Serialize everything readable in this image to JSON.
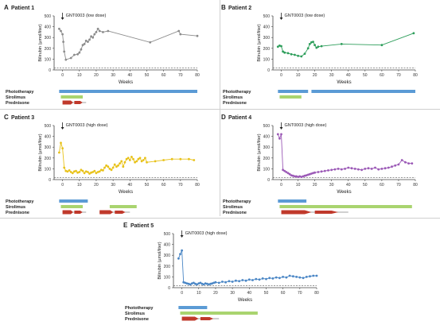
{
  "chart_data": [
    {
      "type": "line",
      "panel_label": "A",
      "title": "Patient 1",
      "annotation": "GNT0003 (low dose)",
      "xlabel": "Weeks",
      "ylabel": "Bilirubin (µmol/liter)",
      "xlim": [
        -5,
        80
      ],
      "ylim": [
        0,
        500
      ],
      "xticks": [
        0,
        10,
        20,
        30,
        40,
        50,
        60,
        70,
        80
      ],
      "yticks": [
        0,
        100,
        200,
        300,
        400,
        500
      ],
      "color": "#8c8c8c",
      "dashed_reference_y": 20,
      "x": [
        -2,
        -1,
        0,
        0.5,
        1,
        2,
        5,
        7,
        9,
        10,
        11,
        12,
        13,
        14,
        15,
        16,
        17,
        18,
        19,
        20,
        21,
        22,
        24,
        27,
        52,
        69,
        70,
        80
      ],
      "y": [
        380,
        360,
        330,
        260,
        170,
        95,
        110,
        140,
        145,
        160,
        190,
        230,
        240,
        270,
        260,
        280,
        310,
        300,
        330,
        350,
        380,
        360,
        350,
        360,
        255,
        360,
        330,
        315
      ],
      "treatments": [
        {
          "name": "Phototherapy",
          "segments": [
            [
              -2,
              80
            ]
          ],
          "color": "#5b9bd5"
        },
        {
          "name": "Sirolimus",
          "segments": [
            [
              -1,
              12
            ]
          ],
          "color": "#a9d46f"
        },
        {
          "name": "Prednisone",
          "segments": [
            [
              0,
              14
            ]
          ],
          "color": "#c0392b"
        }
      ]
    },
    {
      "type": "line",
      "panel_label": "B",
      "title": "Patient 2",
      "annotation": "GNT0003 (low dose)",
      "xlabel": "Weeks",
      "ylabel": "Bilirubin (µmol/liter)",
      "xlim": [
        -5,
        80
      ],
      "ylim": [
        0,
        500
      ],
      "xticks": [
        0,
        10,
        20,
        30,
        40,
        50,
        60,
        70,
        80
      ],
      "yticks": [
        0,
        100,
        200,
        300,
        400,
        500
      ],
      "color": "#2e9e5b",
      "dashed_reference_y": 20,
      "x": [
        -2,
        -1,
        0,
        1,
        2,
        4,
        6,
        8,
        10,
        12,
        14,
        16,
        17,
        18,
        19,
        20,
        21,
        22,
        24,
        36,
        60,
        79
      ],
      "y": [
        215,
        225,
        220,
        170,
        160,
        155,
        145,
        140,
        130,
        125,
        150,
        200,
        240,
        255,
        260,
        230,
        205,
        215,
        220,
        240,
        230,
        340
      ],
      "treatments": [
        {
          "name": "Phototherapy",
          "segments": [
            [
              -2,
              16
            ],
            [
              18,
              80
            ]
          ],
          "color": "#5b9bd5"
        },
        {
          "name": "Sirolimus",
          "segments": [
            [
              -1,
              12
            ]
          ],
          "color": "#a9d46f"
        },
        {
          "name": "Prednisone",
          "segments": [],
          "color": "#c0392b"
        }
      ]
    },
    {
      "type": "line",
      "panel_label": "C",
      "title": "Patient 3",
      "annotation": "GNT0003 (high dose)",
      "xlabel": "Weeks",
      "ylabel": "Bilirubin (µmol/liter)",
      "xlim": [
        -5,
        80
      ],
      "ylim": [
        0,
        500
      ],
      "xticks": [
        0,
        10,
        20,
        30,
        40,
        50,
        60,
        70,
        80
      ],
      "yticks": [
        0,
        100,
        200,
        300,
        400,
        500
      ],
      "color": "#e8c21a",
      "dashed_reference_y": 20,
      "x": [
        -2,
        -1,
        0,
        1,
        2,
        3,
        4,
        5,
        6,
        7,
        8,
        9,
        10,
        11,
        12,
        13,
        14,
        15,
        16,
        17,
        18,
        19,
        20,
        21,
        22,
        23,
        24,
        25,
        26,
        27,
        28,
        29,
        30,
        31,
        32,
        33,
        34,
        35,
        36,
        37,
        38,
        39,
        40,
        41,
        42,
        43,
        44,
        45,
        46,
        47,
        48,
        49,
        50,
        55,
        60,
        65,
        70,
        75,
        78
      ],
      "y": [
        250,
        340,
        290,
        110,
        80,
        75,
        85,
        70,
        60,
        75,
        80,
        65,
        70,
        90,
        80,
        60,
        75,
        70,
        55,
        65,
        70,
        80,
        60,
        70,
        75,
        90,
        85,
        110,
        130,
        120,
        100,
        90,
        110,
        140,
        120,
        130,
        150,
        170,
        120,
        160,
        190,
        200,
        180,
        210,
        190,
        160,
        170,
        190,
        200,
        170,
        180,
        200,
        160,
        170,
        180,
        190,
        190,
        190,
        180
      ],
      "treatments": [
        {
          "name": "Phototherapy",
          "segments": [
            [
              -2,
              15
            ]
          ],
          "color": "#5b9bd5"
        },
        {
          "name": "Sirolimus",
          "segments": [
            [
              -1,
              12
            ],
            [
              28,
              44
            ]
          ],
          "color": "#a9d46f"
        },
        {
          "name": "Prednisone",
          "segments": [
            [
              0,
              14
            ],
            [
              22,
              40
            ]
          ],
          "color": "#c0392b"
        }
      ]
    },
    {
      "type": "line",
      "panel_label": "D",
      "title": "Patient 4",
      "annotation": "GNT0003 (high dose)",
      "xlabel": "Weeks",
      "ylabel": "Bilirubin (µmol/liter)",
      "xlim": [
        -5,
        80
      ],
      "ylim": [
        0,
        500
      ],
      "xticks": [
        0,
        10,
        20,
        30,
        40,
        50,
        60,
        70,
        80
      ],
      "yticks": [
        0,
        100,
        200,
        300,
        400,
        500
      ],
      "color": "#9b59b6",
      "dashed_reference_y": 20,
      "x": [
        -2,
        -1,
        0,
        1,
        2,
        3,
        4,
        5,
        6,
        7,
        8,
        9,
        10,
        11,
        12,
        13,
        14,
        15,
        16,
        17,
        18,
        19,
        20,
        22,
        24,
        26,
        28,
        30,
        32,
        34,
        36,
        38,
        40,
        42,
        44,
        46,
        48,
        50,
        52,
        54,
        56,
        58,
        60,
        62,
        64,
        66,
        68,
        70,
        72,
        74,
        76,
        78
      ],
      "y": [
        420,
        380,
        420,
        90,
        80,
        70,
        60,
        50,
        40,
        35,
        30,
        30,
        25,
        30,
        25,
        30,
        35,
        40,
        45,
        50,
        55,
        60,
        65,
        70,
        75,
        80,
        85,
        90,
        95,
        100,
        95,
        100,
        110,
        105,
        100,
        95,
        90,
        100,
        105,
        100,
        110,
        95,
        100,
        105,
        110,
        120,
        130,
        140,
        180,
        160,
        150,
        150
      ],
      "treatments": [
        {
          "name": "Phototherapy",
          "segments": [
            [
              -2,
              15
            ]
          ],
          "color": "#5b9bd5"
        },
        {
          "name": "Sirolimus",
          "segments": [
            [
              -1,
              78
            ]
          ],
          "color": "#a9d46f"
        },
        {
          "name": "Prednisone",
          "segments": [
            [
              0,
              40
            ]
          ],
          "color": "#c0392b"
        }
      ]
    },
    {
      "type": "line",
      "panel_label": "E",
      "title": "Patient 5",
      "annotation": "GNT0003 (high dose)",
      "xlabel": "Weeks",
      "ylabel": "Bilirubin (µmol/liter)",
      "xlim": [
        -5,
        80
      ],
      "ylim": [
        0,
        500
      ],
      "xticks": [
        0,
        10,
        20,
        30,
        40,
        50,
        60,
        70,
        80
      ],
      "yticks": [
        0,
        100,
        200,
        300,
        400,
        500
      ],
      "color": "#4a86c5",
      "dashed_reference_y": 20,
      "x": [
        -2,
        -1,
        0,
        1,
        2,
        3,
        4,
        5,
        6,
        7,
        8,
        9,
        10,
        11,
        12,
        13,
        14,
        15,
        16,
        17,
        18,
        19,
        20,
        22,
        24,
        26,
        28,
        30,
        32,
        34,
        36,
        38,
        40,
        42,
        44,
        46,
        48,
        50,
        52,
        54,
        56,
        58,
        60,
        62,
        64,
        66,
        68,
        70,
        72,
        74,
        76,
        78,
        80
      ],
      "y": [
        270,
        310,
        345,
        50,
        45,
        40,
        35,
        30,
        40,
        45,
        35,
        30,
        40,
        45,
        35,
        30,
        40,
        35,
        30,
        35,
        40,
        45,
        50,
        45,
        55,
        50,
        60,
        55,
        65,
        60,
        70,
        65,
        75,
        70,
        80,
        75,
        85,
        80,
        90,
        85,
        95,
        90,
        100,
        95,
        110,
        105,
        100,
        95,
        90,
        100,
        105,
        110,
        110
      ],
      "treatments": [
        {
          "name": "Phototherapy",
          "segments": [
            [
              -2,
              15
            ]
          ],
          "color": "#5b9bd5"
        },
        {
          "name": "Sirolimus",
          "segments": [
            [
              -1,
              45
            ]
          ],
          "color": "#a9d46f"
        },
        {
          "name": "Prednisone",
          "segments": [
            [
              0,
              22
            ]
          ],
          "color": "#c0392b"
        }
      ]
    }
  ]
}
